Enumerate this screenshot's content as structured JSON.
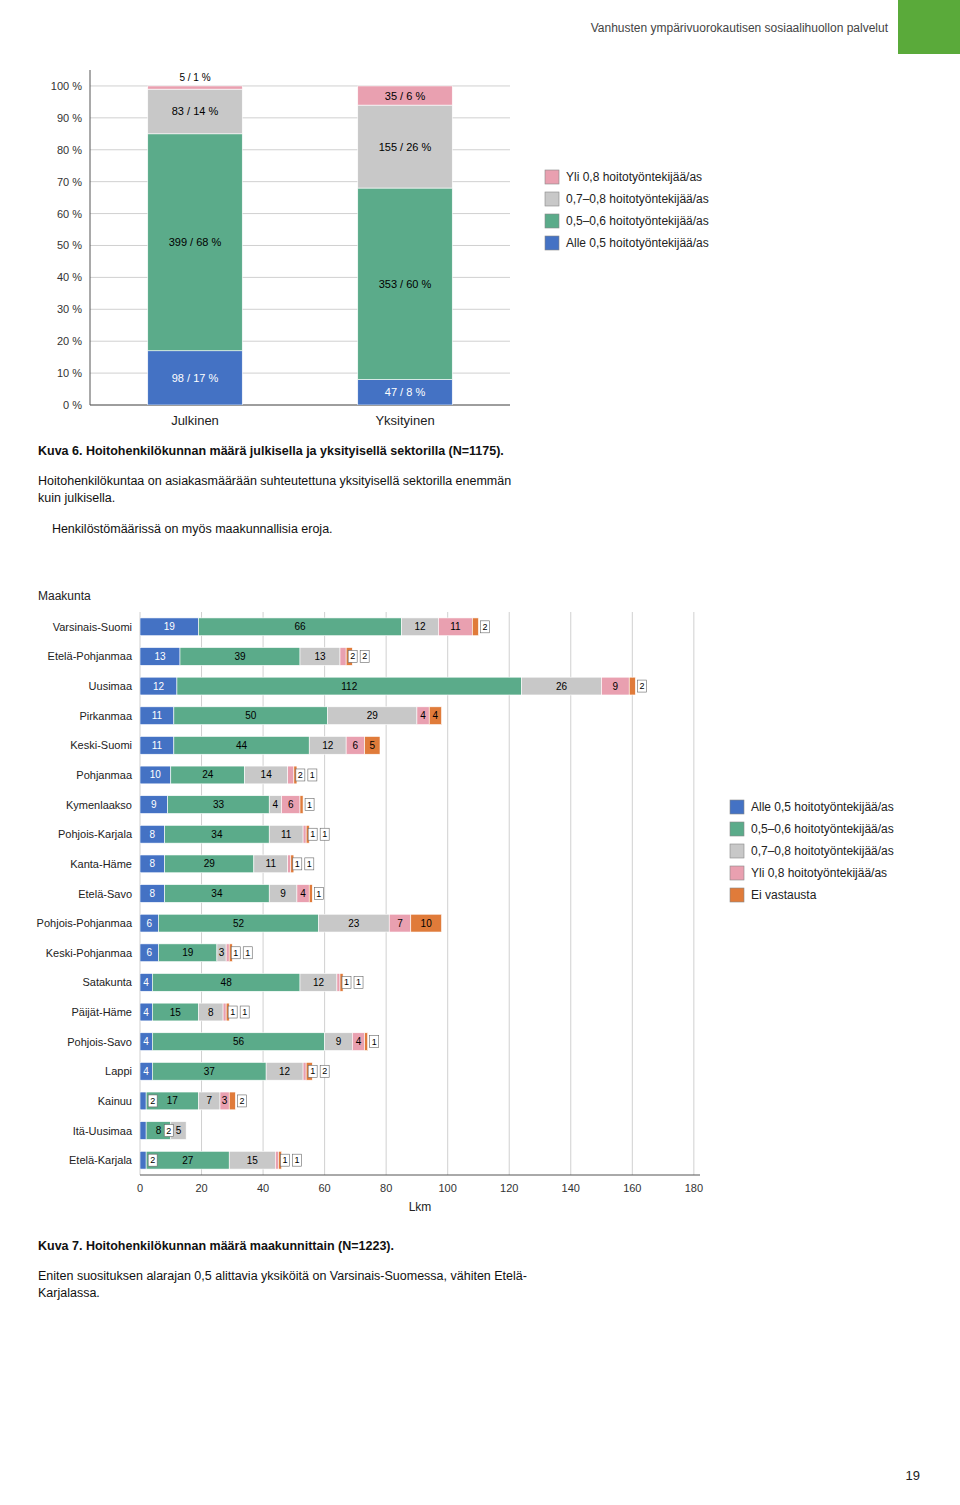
{
  "page": {
    "title": "Vanhusten ympärivuorokautisen sosiaalihuollon palvelut",
    "color": "#5aaa3a",
    "footer": "19"
  },
  "chart_data": [
    {
      "type": "bar",
      "stacked": true,
      "title": "Kuva 6. Hoitohenkilökunnan määrä julkisella ja yksityisellä sektorilla (N=1175).",
      "annotations": [
        "Hoitohenkilökuntaa on asiakasmäärään suhteutettuna yksityisellä sektorilla enemmän\nkuin julkisella.",
        "    Henkilöstömäärissä on myös maakunnallisia eroja."
      ],
      "categories": [
        "Julkinen",
        "Yksityinen"
      ],
      "series": [
        {
          "name": "Alle 0,5 hoitotyöntekijää/as",
          "color": "#4472c4",
          "values": [
            17,
            8
          ],
          "value_labels": [
            "98 / 17 %",
            "47 / 8 %"
          ]
        },
        {
          "name": "0,5–0,6 hoitotyöntekijää/as",
          "color": "#5bab8a",
          "values": [
            68,
            60
          ],
          "value_labels": [
            "399 / 68 %",
            "353 / 60 %"
          ]
        },
        {
          "name": "0,7–0,8 hoitotyöntekijää/as",
          "color": "#c8c8c8",
          "values": [
            14,
            26
          ],
          "value_labels": [
            "83 / 14 %",
            "155 / 26 %"
          ]
        },
        {
          "name": "Yli 0,8 hoitotyöntekijää/as",
          "color": "#e9a0b0",
          "values": [
            1,
            6
          ],
          "value_labels": [
            "5 / 1 %",
            "35 / 6 %"
          ]
        }
      ],
      "ylim": [
        0,
        105
      ],
      "yticks": [
        {
          "value": 0,
          "label": "0 %"
        },
        {
          "value": 10,
          "label": "10 %"
        },
        {
          "value": 20,
          "label": "20 %"
        },
        {
          "value": 30,
          "label": "30 %"
        },
        {
          "value": 40,
          "label": "40 %"
        },
        {
          "value": 50,
          "label": "50 %"
        },
        {
          "value": 60,
          "label": "60 %"
        },
        {
          "value": 70,
          "label": "70 %"
        },
        {
          "value": 80,
          "label": "80 %"
        },
        {
          "value": 90,
          "label": "90 %"
        },
        {
          "value": 100,
          "label": "100 %"
        }
      ],
      "grid": true,
      "legend": "right",
      "data_labels": true
    },
    {
      "type": "bar",
      "orientation": "horizontal",
      "stacked": true,
      "title": "Kuva 7. Hoitohenkilökunnan määrä maakunnittain (N=1223).",
      "annotations": [
        "Eniten suosituksen alarajan 0,5 alittavia yksiköitä on Varsinais-Suomessa, vähiten Etelä-\nKarjalassa."
      ],
      "xlabel": "Lkm",
      "ylabel": "Maakunta",
      "categories": [
        "Varsinais-Suomi",
        "Etelä-Pohjanmaa",
        "Uusimaa",
        "Pirkanmaa",
        "Keski-Suomi",
        "Pohjanmaa",
        "Kymenlaakso",
        "Pohjois-Karjala",
        "Kanta-Häme",
        "Etelä-Savo",
        "Pohjois-Pohjanmaa",
        "Keski-Pohjanmaa",
        "Satakunta",
        "Päijät-Häme",
        "Pohjois-Savo",
        "Lappi",
        "Kainuu",
        "Itä-Uusimaa",
        "Etelä-Karjala"
      ],
      "series": [
        {
          "name": "Alle 0,5 hoitotyöntekijää/as",
          "color": "#4472c4",
          "values": [
            19,
            13,
            12,
            11,
            11,
            10,
            9,
            8,
            8,
            8,
            6,
            6,
            4,
            4,
            4,
            4,
            2,
            2,
            2
          ]
        },
        {
          "name": "0,5–0,6 hoitotyöntekijää/as",
          "color": "#5bab8a",
          "values": [
            66,
            39,
            112,
            50,
            44,
            24,
            33,
            34,
            29,
            34,
            52,
            19,
            48,
            15,
            56,
            37,
            17,
            8,
            27
          ]
        },
        {
          "name": "0,7–0,8 hoitotyöntekijää/as",
          "color": "#c8c8c8",
          "values": [
            12,
            13,
            26,
            29,
            12,
            14,
            4,
            11,
            11,
            9,
            23,
            3,
            12,
            8,
            9,
            12,
            7,
            5,
            15
          ]
        },
        {
          "name": "Yli 0,8 hoitotyöntekijää/as",
          "color": "#e9a0b0",
          "values": [
            11,
            2,
            9,
            4,
            6,
            2,
            6,
            1,
            1,
            4,
            7,
            1,
            1,
            1,
            4,
            1,
            3,
            0,
            1
          ]
        },
        {
          "name": "Ei vastausta",
          "color": "#e07b3a",
          "values": [
            2,
            2,
            2,
            4,
            5,
            1,
            1,
            1,
            1,
            1,
            10,
            1,
            1,
            1,
            1,
            2,
            2,
            0,
            1
          ]
        }
      ],
      "xlim": [
        0,
        182
      ],
      "xticks": [
        0,
        20,
        40,
        60,
        80,
        100,
        120,
        140,
        160,
        180
      ],
      "grid": true,
      "legend": "right",
      "data_labels": true
    }
  ]
}
